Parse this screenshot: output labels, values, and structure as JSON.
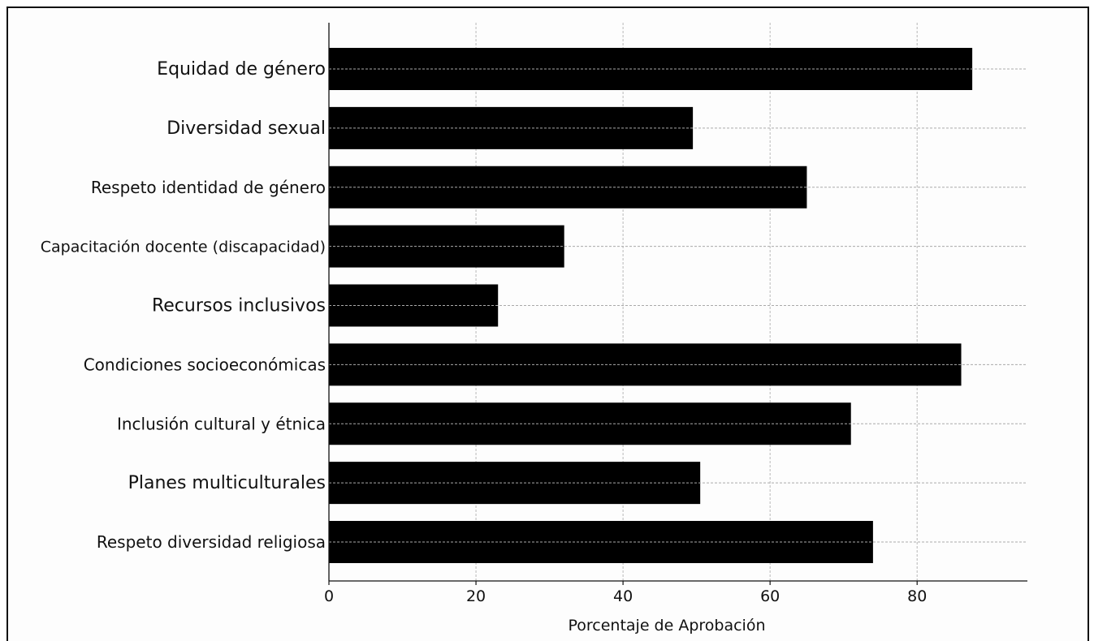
{
  "chart_data": {
    "type": "bar",
    "orientation": "horizontal",
    "categories": [
      "Equidad de género",
      "Diversidad sexual",
      "Respeto identidad de género",
      "Capacitación docente (discapacidad)",
      "Recursos inclusivos",
      "Condiciones socioeconómicas",
      "Inclusión cultural y étnica",
      "Planes multiculturales",
      "Respeto diversidad religiosa"
    ],
    "values": [
      87.5,
      49.5,
      65,
      32,
      23,
      86,
      71,
      50.5,
      74
    ],
    "title": "",
    "xlabel": "Porcentaje de Aprobación",
    "ylabel": "",
    "xlim": [
      0,
      95
    ],
    "xticks": [
      0,
      20,
      40,
      60,
      80
    ],
    "grid": true,
    "bar_color": "#000000"
  }
}
